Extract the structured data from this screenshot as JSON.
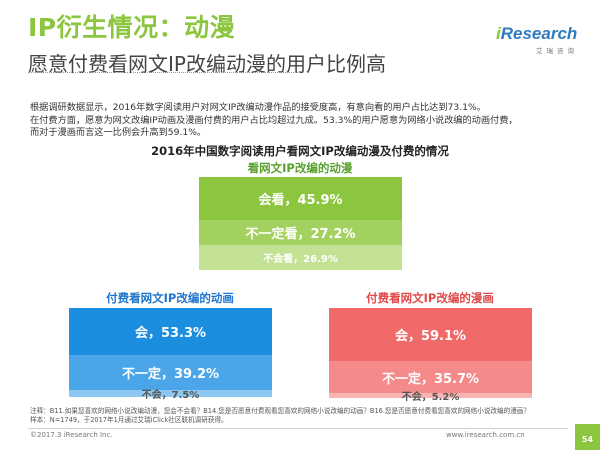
{
  "header": {
    "title": "IP衍生情况：动漫",
    "subtitle": "愿意付费看网文IP改编动漫的用户比例高"
  },
  "logo": {
    "brand_i": "i",
    "brand_rest": "Research",
    "tagline": "艾瑞咨询"
  },
  "intro": [
    "根据调研数据显示，2016年数字阅读用户对网文IP改编动漫作品的接受度高，有意向看的用户占比达到73.1%。",
    "在付费方面，愿意为网文改编IP动画及漫画付费的用户占比均超过九成。53.3%的用户愿意为网络小说改编的动画付费，",
    "而对于漫画而言这一比例会升高到59.1%。"
  ],
  "chart_title": "2016年中国数字阅读用户看网文IP改编动漫及付费的情况",
  "chart_data": [
    {
      "type": "bar",
      "title": "看网文IP改编的动漫",
      "categories": [
        "会看",
        "不一定看",
        "不会看"
      ],
      "values": [
        45.9,
        27.2,
        26.9
      ],
      "labels": [
        "会看，45.9%",
        "不一定看，27.2%",
        "不会看，26.9%"
      ],
      "colors": [
        "#8cc63f",
        "#a3d160",
        "#c4e294"
      ]
    },
    {
      "type": "bar",
      "title": "付费看网文IP改编的动画",
      "categories": [
        "会",
        "不一定",
        "不会"
      ],
      "values": [
        53.3,
        39.2,
        7.5
      ],
      "labels": [
        "会，53.3%",
        "不一定，39.2%",
        "不会，7.5%"
      ],
      "colors": [
        "#1c8ee0",
        "#4aa6e8",
        "#8cc8f2"
      ]
    },
    {
      "type": "bar",
      "title": "付费看网文IP改编的漫画",
      "categories": [
        "会",
        "不一定",
        "不会"
      ],
      "values": [
        59.1,
        35.7,
        5.2
      ],
      "labels": [
        "会，59.1%",
        "不一定，35.7%",
        "不会，5.2%"
      ],
      "colors": [
        "#f06a6a",
        "#f48a8a",
        "#f8b3b3"
      ]
    }
  ],
  "footnote": [
    "注释：B11.如果您喜欢的网络小说改编动漫，您会不会看？B14.您是否愿意付费观看您喜欢的网络小说改编的动画？B16.您是否愿意付费看您喜欢的网络小说改编的漫画？",
    "样本：N=1749，于2017年1月通过艾瑞iClick社区联机调研获得。"
  ],
  "footer": {
    "copyright": "©2017.3 iResearch Inc.",
    "site": "www.iresearch.com.cn",
    "page": "54"
  }
}
